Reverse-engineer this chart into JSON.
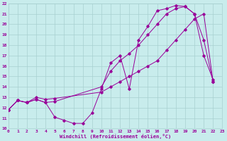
{
  "xlabel": "Windchill (Refroidissement éolien,°C)",
  "xlim": [
    0,
    23
  ],
  "ylim": [
    10,
    22
  ],
  "xticks": [
    0,
    1,
    2,
    3,
    4,
    5,
    6,
    7,
    8,
    9,
    10,
    11,
    12,
    13,
    14,
    15,
    16,
    17,
    18,
    19,
    20,
    21,
    22,
    23
  ],
  "yticks": [
    10,
    11,
    12,
    13,
    14,
    15,
    16,
    17,
    18,
    19,
    20,
    21,
    22
  ],
  "bg_color": "#c8ecec",
  "grid_color": "#a8d0d0",
  "line_color": "#990099",
  "curves": [
    {
      "x": [
        0,
        1,
        2,
        3,
        4,
        5,
        6,
        7,
        8,
        9,
        10,
        11,
        12,
        13,
        14,
        15,
        16,
        17,
        18,
        19,
        20,
        21,
        22
      ],
      "y": [
        11.8,
        12.7,
        12.5,
        12.8,
        12.5,
        11.1,
        10.8,
        10.5,
        10.5,
        11.5,
        13.8,
        16.3,
        17.0,
        13.8,
        18.5,
        19.8,
        21.3,
        21.5,
        21.8,
        21.7,
        21.0,
        17.0,
        14.7
      ]
    },
    {
      "x": [
        0,
        1,
        2,
        3,
        4,
        5,
        10,
        11,
        12,
        13,
        14,
        15,
        16,
        17,
        18,
        19,
        20,
        21,
        22
      ],
      "y": [
        11.8,
        12.7,
        12.5,
        12.8,
        12.5,
        12.6,
        14.0,
        15.5,
        16.5,
        17.2,
        18.0,
        19.0,
        20.0,
        21.0,
        21.5,
        21.7,
        21.0,
        18.5,
        14.5
      ]
    },
    {
      "x": [
        0,
        1,
        2,
        3,
        4,
        5,
        10,
        11,
        12,
        13,
        14,
        15,
        16,
        17,
        18,
        19,
        20,
        21,
        22
      ],
      "y": [
        11.8,
        12.7,
        12.5,
        13.0,
        12.8,
        12.9,
        13.5,
        14.0,
        14.5,
        15.0,
        15.5,
        16.0,
        16.5,
        17.5,
        18.5,
        19.5,
        20.5,
        21.0,
        14.5
      ]
    }
  ]
}
